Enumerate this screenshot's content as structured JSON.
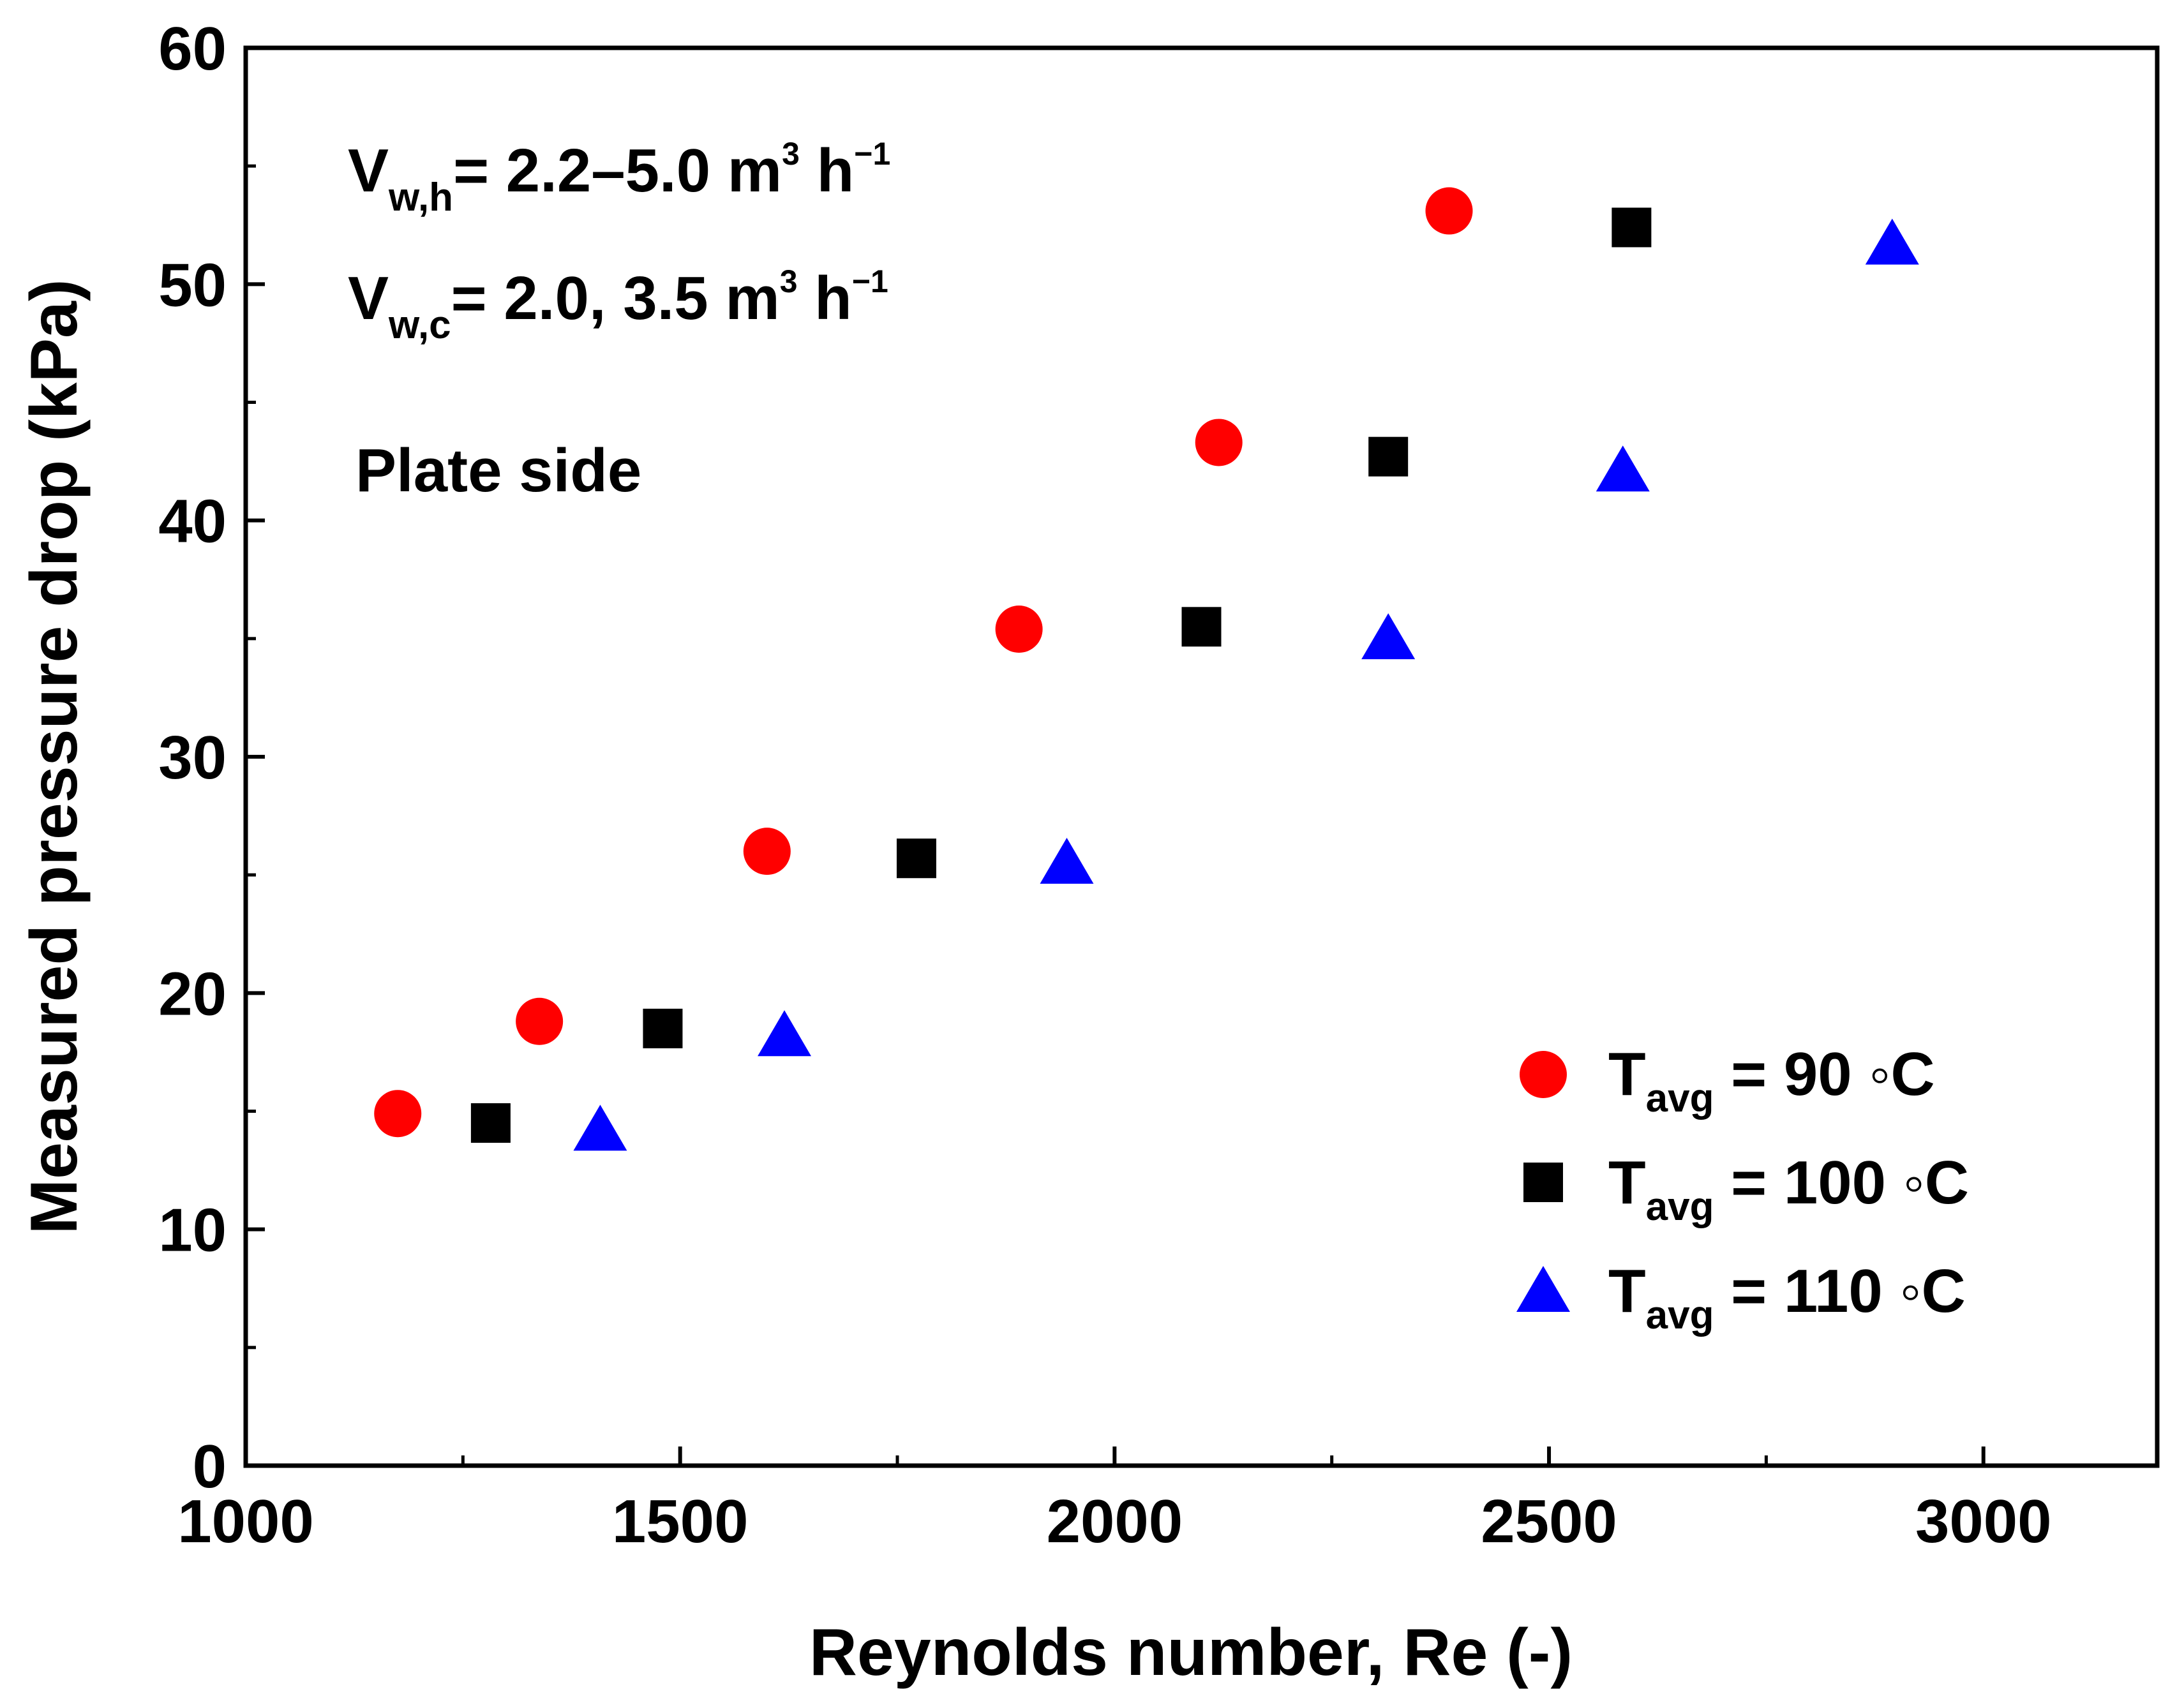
{
  "chart_data": {
    "type": "scatter",
    "title": "",
    "xlabel": "Reynolds number, Re (-)",
    "ylabel": "Measured pressure drop (kPa)",
    "xlim": [
      1000,
      3200
    ],
    "ylim": [
      0,
      60
    ],
    "xticks": [
      1000,
      1500,
      2000,
      2500,
      3000
    ],
    "xtick_labels": [
      "1000",
      "1500",
      "2000",
      "2500",
      "3000"
    ],
    "yticks": [
      0,
      10,
      20,
      30,
      40,
      50,
      60
    ],
    "ytick_labels": [
      "0",
      "10",
      "20",
      "30",
      "40",
      "50",
      "60"
    ],
    "grid": false,
    "legend_position": "bottom-right",
    "series": [
      {
        "name": "Tavg = 90 °C",
        "legend_main": "T",
        "legend_sub": "avg",
        "legend_rest": " = 90 ◦C",
        "marker": "circle",
        "color": "#ff0000",
        "x": [
          1175,
          1338,
          1600,
          1890,
          2120,
          2385
        ],
        "y": [
          14.9,
          18.8,
          26.0,
          35.4,
          43.3,
          53.1
        ]
      },
      {
        "name": "Tavg = 100 °C",
        "legend_main": "T",
        "legend_sub": "avg",
        "legend_rest": " = 100 ◦C",
        "marker": "square",
        "color": "#000000",
        "x": [
          1282,
          1480,
          1772,
          2100,
          2315,
          2595
        ],
        "y": [
          14.5,
          18.5,
          25.7,
          35.5,
          42.7,
          52.4
        ]
      },
      {
        "name": "Tavg = 110 °C",
        "legend_main": "T",
        "legend_sub": "avg",
        "legend_rest": " = 110 ◦C",
        "marker": "triangle",
        "color": "#0000ff",
        "x": [
          1408,
          1620,
          1945,
          2315,
          2585,
          2895
        ],
        "y": [
          14.3,
          18.3,
          25.6,
          35.1,
          42.2,
          51.8
        ]
      }
    ],
    "annotations": {
      "line1": {
        "main": "V",
        "sub": "w,h",
        "rest": "= 2.2–5.0 m",
        "sup": "3",
        "tail": " h",
        "tail_sup": "−1"
      },
      "line2": {
        "main": "V",
        "sub": "w,c",
        "rest": "= 2.0, 3.5 m",
        "sup": "3",
        "tail": " h",
        "tail_sup": "−1"
      },
      "line3": "Plate side"
    }
  }
}
